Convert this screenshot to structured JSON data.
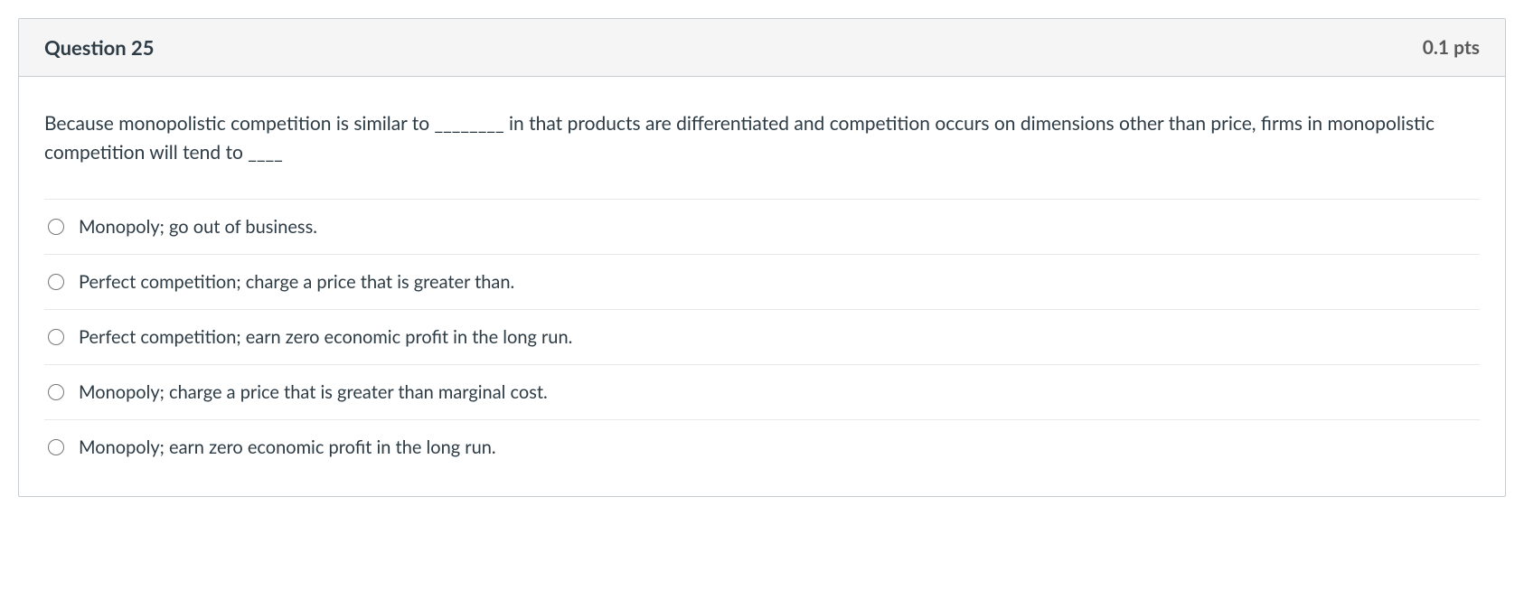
{
  "header": {
    "title": "Question 25",
    "points": "0.1 pts"
  },
  "question": {
    "text": "Because monopolistic competition is similar to ________ in that products are differentiated and competition occurs on dimensions other than price, firms in monopolistic competition will tend to ____"
  },
  "answers": [
    {
      "label": "Monopoly; go out of business."
    },
    {
      "label": "Perfect competition; charge a price that is greater than."
    },
    {
      "label": "Perfect competition; earn zero economic profit in the long run."
    },
    {
      "label": "Monopoly; charge a price that is greater than marginal cost."
    },
    {
      "label": "Monopoly; earn zero economic profit in the long run."
    }
  ]
}
